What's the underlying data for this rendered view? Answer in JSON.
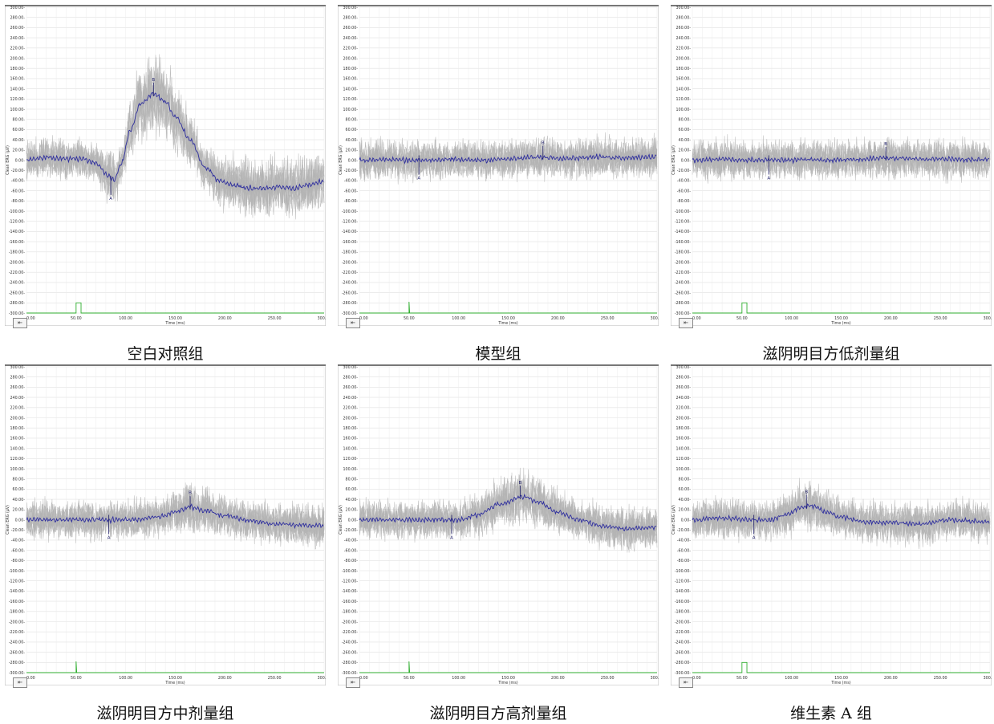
{
  "chart_data": [
    {
      "type": "line",
      "caption": "空白对照组",
      "ylabel": "Clean ERG (µV)",
      "xlabel": "Time (ms)",
      "xlim": [
        0,
        300
      ],
      "ylim": [
        -300,
        300
      ],
      "x_ticks": [
        "0.00",
        "50.00",
        "100.00",
        "150.00",
        "200.00",
        "250.00",
        "300.00"
      ],
      "y_ticks": [
        "300.00",
        "280.00",
        "260.00",
        "240.00",
        "220.00",
        "200.00",
        "180.00",
        "160.00",
        "140.00",
        "120.00",
        "100.00",
        "80.00",
        "60.00",
        "40.00",
        "20.00",
        "0.00",
        "-20.00",
        "-40.00",
        "-60.00",
        "-80.00",
        "-100.00",
        "-120.00",
        "-140.00",
        "-160.00",
        "-180.00",
        "-200.00",
        "-220.00",
        "-240.00",
        "-260.00",
        "-280.00",
        "-300.00"
      ],
      "grid": true,
      "series": [
        {
          "color": "#2e2e9e",
          "x": [
            0,
            20,
            40,
            55,
            70,
            82,
            88,
            95,
            105,
            115,
            128,
            140,
            150,
            165,
            180,
            195,
            210,
            225,
            240,
            255,
            270,
            285,
            300
          ],
          "values": [
            0,
            5,
            2,
            3,
            -5,
            -30,
            -40,
            -10,
            60,
            110,
            130,
            115,
            85,
            40,
            -15,
            -40,
            -50,
            -55,
            -55,
            -52,
            -56,
            -48,
            -42
          ]
        }
      ],
      "markers": [
        {
          "label": "A",
          "x": 85,
          "y": -40
        },
        {
          "label": "B",
          "x": 128,
          "y": 130
        }
      ],
      "stimulus": {
        "start": 50,
        "end": 55,
        "style": "pulse"
      }
    },
    {
      "type": "line",
      "caption": "模型组",
      "ylabel": "Clean ERG (µV)",
      "xlabel": "Time (ms)",
      "xlim": [
        0,
        300
      ],
      "ylim": [
        -300,
        300
      ],
      "x_ticks": [
        "0.00",
        "50.00",
        "100.00",
        "150.00",
        "200.00",
        "250.00",
        "300.00"
      ],
      "y_ticks": [
        "300.00",
        "280.00",
        "260.00",
        "240.00",
        "220.00",
        "200.00",
        "180.00",
        "160.00",
        "140.00",
        "120.00",
        "100.00",
        "80.00",
        "60.00",
        "40.00",
        "20.00",
        "0.00",
        "-20.00",
        "-40.00",
        "-60.00",
        "-80.00",
        "-100.00",
        "-120.00",
        "-140.00",
        "-160.00",
        "-180.00",
        "-200.00",
        "-220.00",
        "-240.00",
        "-260.00",
        "-280.00",
        "-300.00"
      ],
      "grid": true,
      "series": [
        {
          "color": "#2e2e9e",
          "x": [
            0,
            30,
            60,
            90,
            120,
            150,
            180,
            210,
            240,
            270,
            300
          ],
          "values": [
            0,
            1,
            0,
            1,
            0,
            2,
            6,
            4,
            6,
            5,
            7
          ]
        }
      ],
      "markers": [
        {
          "label": "A",
          "x": 60,
          "y": 0
        },
        {
          "label": "B",
          "x": 185,
          "y": 6
        }
      ],
      "stimulus": {
        "start": 50,
        "end": 50,
        "style": "spike"
      }
    },
    {
      "type": "line",
      "caption": "滋阴明目方低剂量组",
      "ylabel": "Clean ERG (µV)",
      "xlabel": "Time (ms)",
      "xlim": [
        0,
        300
      ],
      "ylim": [
        -300,
        300
      ],
      "x_ticks": [
        "0.00",
        "50.00",
        "100.00",
        "150.00",
        "200.00",
        "250.00",
        "300.00"
      ],
      "y_ticks": [
        "300.00",
        "280.00",
        "260.00",
        "240.00",
        "220.00",
        "200.00",
        "180.00",
        "160.00",
        "140.00",
        "120.00",
        "100.00",
        "80.00",
        "60.00",
        "40.00",
        "20.00",
        "0.00",
        "-20.00",
        "-40.00",
        "-60.00",
        "-80.00",
        "-100.00",
        "-120.00",
        "-140.00",
        "-160.00",
        "-180.00",
        "-200.00",
        "-220.00",
        "-240.00",
        "-260.00",
        "-280.00",
        "-300.00"
      ],
      "grid": true,
      "series": [
        {
          "color": "#2e2e9e",
          "x": [
            0,
            30,
            60,
            80,
            110,
            140,
            170,
            195,
            220,
            250,
            280,
            300
          ],
          "values": [
            0,
            2,
            0,
            0,
            1,
            0,
            2,
            4,
            3,
            2,
            1,
            0
          ]
        }
      ],
      "markers": [
        {
          "label": "A",
          "x": 77,
          "y": 0
        },
        {
          "label": "B",
          "x": 195,
          "y": 4
        }
      ],
      "stimulus": {
        "start": 50,
        "end": 55,
        "style": "pulse"
      }
    },
    {
      "type": "line",
      "caption": "滋阴明目方中剂量组",
      "ylabel": "Clean ERG (µV)",
      "xlabel": "Time (ms)",
      "xlim": [
        0,
        300
      ],
      "ylim": [
        -300,
        300
      ],
      "x_ticks": [
        "0.00",
        "50.00",
        "100.00",
        "150.00",
        "200.00",
        "250.00",
        "300.00"
      ],
      "y_ticks": [
        "300.00",
        "280.00",
        "260.00",
        "240.00",
        "220.00",
        "200.00",
        "180.00",
        "160.00",
        "140.00",
        "120.00",
        "100.00",
        "80.00",
        "60.00",
        "40.00",
        "20.00",
        "0.00",
        "-20.00",
        "-40.00",
        "-60.00",
        "-80.00",
        "-100.00",
        "-120.00",
        "-140.00",
        "-160.00",
        "-180.00",
        "-200.00",
        "-220.00",
        "-240.00",
        "-260.00",
        "-280.00",
        "-300.00"
      ],
      "grid": true,
      "series": [
        {
          "color": "#2e2e9e",
          "x": [
            0,
            40,
            80,
            110,
            130,
            150,
            165,
            180,
            200,
            225,
            250,
            275,
            300
          ],
          "values": [
            0,
            0,
            0,
            0,
            5,
            15,
            25,
            18,
            8,
            -2,
            -8,
            -10,
            -12
          ]
        }
      ],
      "markers": [
        {
          "label": "A",
          "x": 83,
          "y": 0
        },
        {
          "label": "B",
          "x": 165,
          "y": 25
        }
      ],
      "stimulus": {
        "start": 50,
        "end": 50,
        "style": "spike"
      }
    },
    {
      "type": "line",
      "caption": "滋阴明目方高剂量组",
      "ylabel": "Clean ERG (µV)",
      "xlabel": "Time (ms)",
      "xlim": [
        0,
        300
      ],
      "ylim": [
        -300,
        300
      ],
      "x_ticks": [
        "0.00",
        "50.00",
        "100.00",
        "150.00",
        "200.00",
        "250.00",
        "300.00"
      ],
      "y_ticks": [
        "300.00",
        "280.00",
        "260.00",
        "240.00",
        "220.00",
        "200.00",
        "180.00",
        "160.00",
        "140.00",
        "120.00",
        "100.00",
        "80.00",
        "60.00",
        "40.00",
        "20.00",
        "0.00",
        "-20.00",
        "-40.00",
        "-60.00",
        "-80.00",
        "-100.00",
        "-120.00",
        "-140.00",
        "-160.00",
        "-180.00",
        "-200.00",
        "-220.00",
        "-240.00",
        "-260.00",
        "-280.00",
        "-300.00"
      ],
      "grid": true,
      "series": [
        {
          "color": "#2e2e9e",
          "x": [
            0,
            40,
            80,
            100,
            120,
            140,
            165,
            180,
            200,
            220,
            245,
            270,
            300
          ],
          "values": [
            0,
            0,
            0,
            0,
            10,
            30,
            45,
            35,
            15,
            0,
            -12,
            -18,
            -15
          ]
        }
      ],
      "markers": [
        {
          "label": "A",
          "x": 93,
          "y": 0
        },
        {
          "label": "B",
          "x": 162,
          "y": 45
        }
      ],
      "stimulus": {
        "start": 50,
        "end": 50,
        "style": "spike"
      }
    },
    {
      "type": "line",
      "caption": "维生素 A 组",
      "ylabel": "Clean ERG (µV)",
      "xlabel": "Time (ms)",
      "xlim": [
        0,
        300
      ],
      "ylim": [
        -300,
        300
      ],
      "x_ticks": [
        "0.00",
        "50.00",
        "100.00",
        "150.00",
        "200.00",
        "250.00",
        "300.00"
      ],
      "y_ticks": [
        "300.00",
        "280.00",
        "260.00",
        "240.00",
        "220.00",
        "200.00",
        "180.00",
        "160.00",
        "140.00",
        "120.00",
        "100.00",
        "80.00",
        "60.00",
        "40.00",
        "20.00",
        "0.00",
        "-20.00",
        "-40.00",
        "-60.00",
        "-80.00",
        "-100.00",
        "-120.00",
        "-140.00",
        "-160.00",
        "-180.00",
        "-200.00",
        "-220.00",
        "-240.00",
        "-260.00",
        "-280.00",
        "-300.00"
      ],
      "grid": true,
      "series": [
        {
          "color": "#2e2e9e",
          "x": [
            0,
            30,
            60,
            80,
            95,
            110,
            120,
            135,
            150,
            175,
            200,
            230,
            260,
            300
          ],
          "values": [
            0,
            3,
            0,
            0,
            10,
            25,
            28,
            15,
            5,
            -5,
            -5,
            -8,
            0,
            -5
          ]
        }
      ],
      "markers": [
        {
          "label": "A",
          "x": 62,
          "y": 0
        },
        {
          "label": "B",
          "x": 115,
          "y": 27
        }
      ],
      "stimulus": {
        "start": 50,
        "end": 55,
        "style": "pulse"
      }
    }
  ]
}
